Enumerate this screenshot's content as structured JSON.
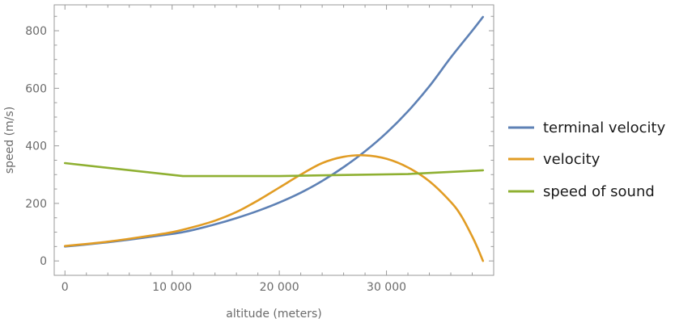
{
  "chart_data": {
    "type": "line",
    "title": "",
    "xlabel": "altitude (meters)",
    "ylabel": "speed (m/s)",
    "xlim": [
      -1000,
      40000
    ],
    "ylim": [
      -50,
      890
    ],
    "x_ticks": [
      {
        "value": 0,
        "label": "0"
      },
      {
        "value": 10000,
        "label": "10 000"
      },
      {
        "value": 20000,
        "label": "20 000"
      },
      {
        "value": 30000,
        "label": "30 000"
      }
    ],
    "y_ticks": [
      {
        "value": 0,
        "label": "0"
      },
      {
        "value": 200,
        "label": "200"
      },
      {
        "value": 400,
        "label": "400"
      },
      {
        "value": 600,
        "label": "600"
      },
      {
        "value": 800,
        "label": "800"
      }
    ],
    "grid": false,
    "legend_position": "right",
    "series": [
      {
        "name": "terminal velocity",
        "color": "#5e81b5",
        "x": [
          0,
          2000,
          4000,
          6000,
          8000,
          10000,
          11000,
          12000,
          14000,
          16000,
          18000,
          20000,
          22000,
          24000,
          26000,
          28000,
          30000,
          32000,
          34000,
          36000,
          38000,
          39000
        ],
        "y": [
          50,
          57,
          65,
          74,
          84,
          94,
          100,
          108,
          127,
          149,
          174,
          203,
          237,
          278,
          326,
          381,
          445,
          520,
          607,
          707,
          800,
          848
        ]
      },
      {
        "name": "velocity",
        "color": "#e19c24",
        "x": [
          0,
          2000,
          4000,
          6000,
          8000,
          10000,
          12000,
          14000,
          16000,
          18000,
          20000,
          22000,
          24000,
          26000,
          28000,
          30000,
          32000,
          34000,
          36000,
          37000,
          38000,
          38500,
          39000
        ],
        "y": [
          52,
          59,
          67,
          77,
          88,
          100,
          118,
          140,
          170,
          210,
          255,
          300,
          340,
          362,
          367,
          355,
          325,
          277,
          205,
          155,
          85,
          45,
          0
        ]
      },
      {
        "name": "speed of sound",
        "color": "#8fb032",
        "x": [
          0,
          11000,
          20000,
          25000,
          32000,
          39000
        ],
        "y": [
          340,
          295,
          295,
          298,
          302,
          315
        ]
      }
    ]
  }
}
